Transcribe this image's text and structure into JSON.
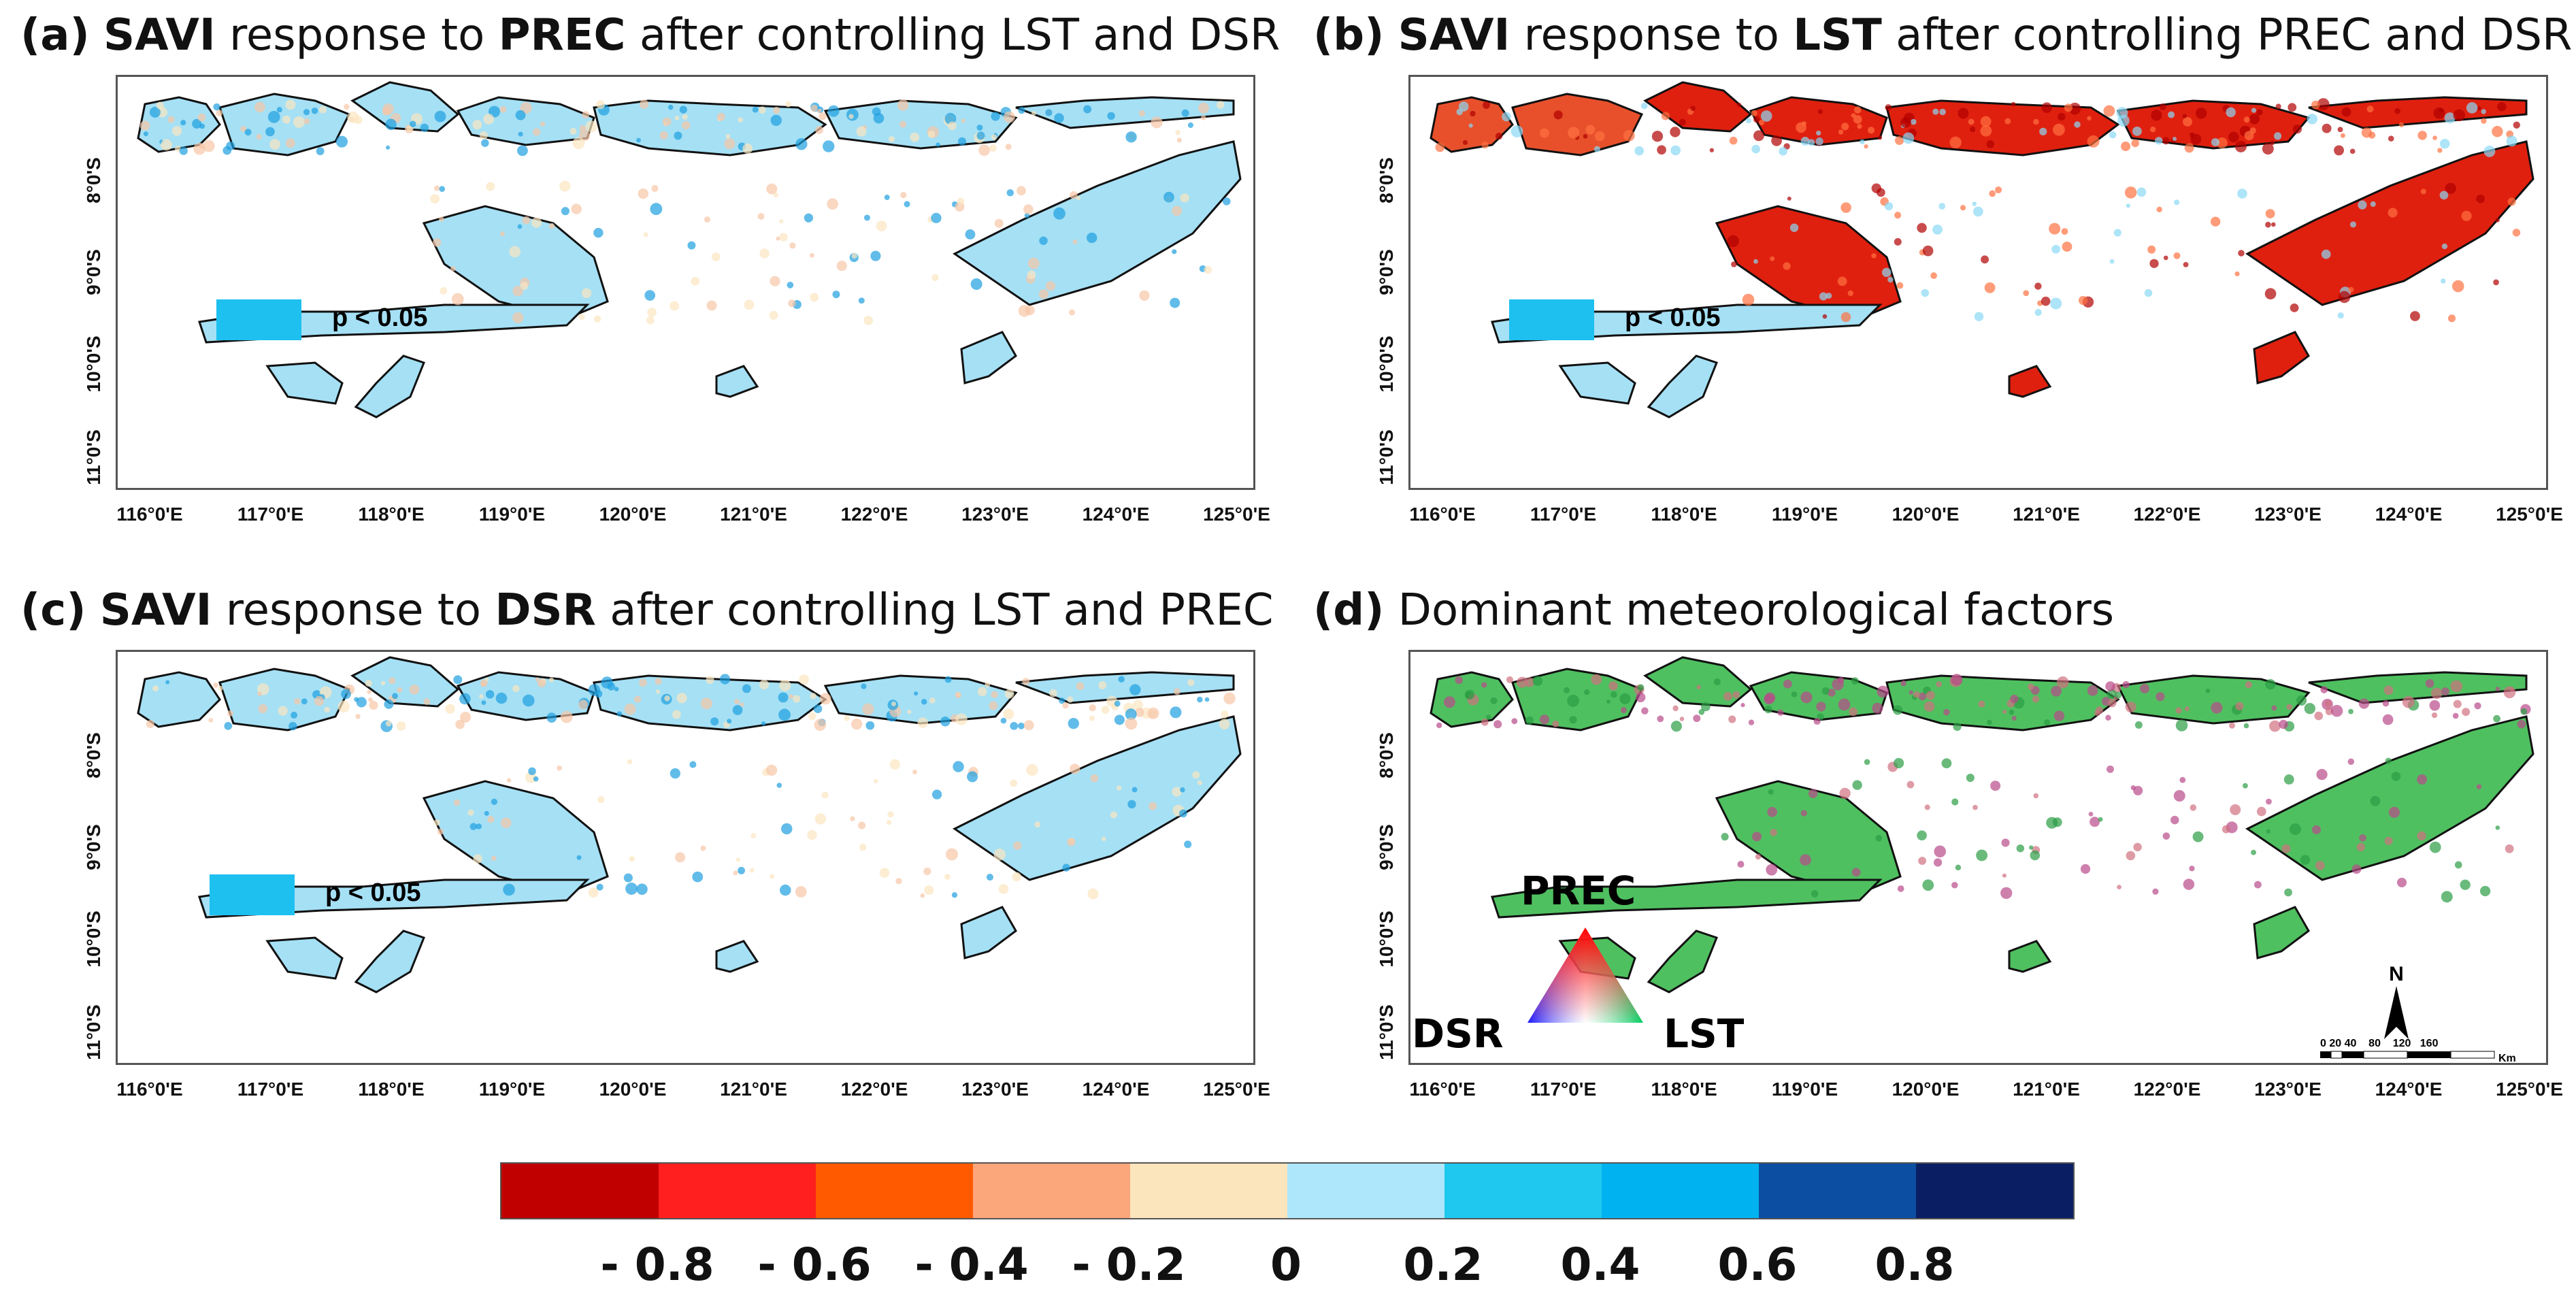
{
  "panels": [
    {
      "letter": "(a)",
      "title_parts": [
        {
          "text": "SAVI",
          "bold": true
        },
        {
          "text": " response to ",
          "bold": false
        },
        {
          "text": "PREC",
          "bold": true
        },
        {
          "text": " after controlling LST and DSR",
          "bold": false
        }
      ],
      "style": "blue",
      "legend": "p < 0.05"
    },
    {
      "letter": "(b)",
      "title_parts": [
        {
          "text": "SAVI",
          "bold": true
        },
        {
          "text": " response to ",
          "bold": false
        },
        {
          "text": "LST",
          "bold": true
        },
        {
          "text": " after controlling PREC and DSR",
          "bold": false
        }
      ],
      "style": "red",
      "legend": "p < 0.05"
    },
    {
      "letter": "(c)",
      "title_parts": [
        {
          "text": "SAVI",
          "bold": true
        },
        {
          "text": " response to ",
          "bold": false
        },
        {
          "text": "DSR",
          "bold": true
        },
        {
          "text": " after controlling LST and PREC",
          "bold": false
        }
      ],
      "style": "blue",
      "legend": "p < 0.05"
    },
    {
      "letter": "(d)",
      "title_parts": [
        {
          "text": "Dominant meteorological factors",
          "bold": false
        }
      ],
      "style": "green",
      "legend": ""
    }
  ],
  "lat_ticks": [
    "8°0'S",
    "9°0'S",
    "10°0'S",
    "11°0'S"
  ],
  "lon_ticks": [
    "116°0'E",
    "117°0'E",
    "118°0'E",
    "119°0'E",
    "120°0'E",
    "121°0'E",
    "122°0'E",
    "123°0'E",
    "124°0'E",
    "125°0'E"
  ],
  "triangle": {
    "top": "PREC",
    "left": "DSR",
    "right": "LST"
  },
  "scalebar": {
    "ticks": "0 20 40    80    120   160",
    "unit": "Km"
  },
  "north_label": "N",
  "colorbar": {
    "colors": [
      "#c00000",
      "#ff1f1f",
      "#ff5a00",
      "#fca67c",
      "#fbe5bd",
      "#aee7fb",
      "#1ec8ef",
      "#00b3f0",
      "#0b4ea2",
      "#0a1f63"
    ],
    "labels": [
      "- 0.8",
      "- 0.6",
      "- 0.4",
      "- 0.2",
      "0",
      "0.2",
      "0.4",
      "0.6",
      "0.8"
    ]
  }
}
